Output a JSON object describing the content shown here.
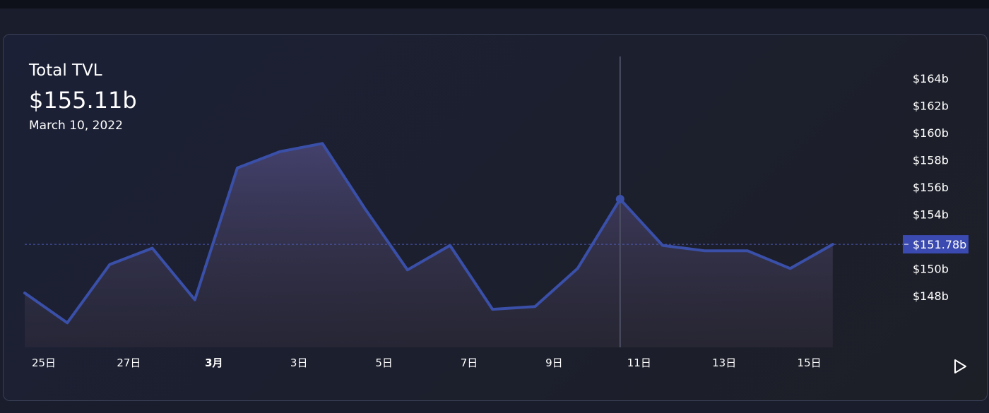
{
  "header": {
    "title": "Total TVL",
    "value": "$155.11b",
    "date": "March 10, 2022"
  },
  "chart_data": {
    "type": "area",
    "title": "Total TVL",
    "x_labels": [
      "25日",
      "27日",
      "3月",
      "3日",
      "5日",
      "7日",
      "9日",
      "11日",
      "13日",
      "15日"
    ],
    "values": [
      148.2,
      146.0,
      150.3,
      151.5,
      147.7,
      157.4,
      158.6,
      159.2,
      154.4,
      149.9,
      151.7,
      147.0,
      147.2,
      150.0,
      155.11,
      151.7,
      151.3,
      151.3,
      150.0,
      151.78
    ],
    "ylim": [
      144.2,
      165.6
    ],
    "y_ticks": [
      148,
      150,
      154,
      156,
      158,
      160,
      162,
      164
    ],
    "y_tick_labels": [
      "$148b",
      "$150b",
      "$154b",
      "$156b",
      "$158b",
      "$160b",
      "$162b",
      "$164b"
    ],
    "hover_index": 14,
    "current_value": 151.78,
    "current_label": "$151.78b",
    "line_color": "#3a4fa8",
    "grid": false
  },
  "controls": {
    "play_icon": "play-icon"
  }
}
